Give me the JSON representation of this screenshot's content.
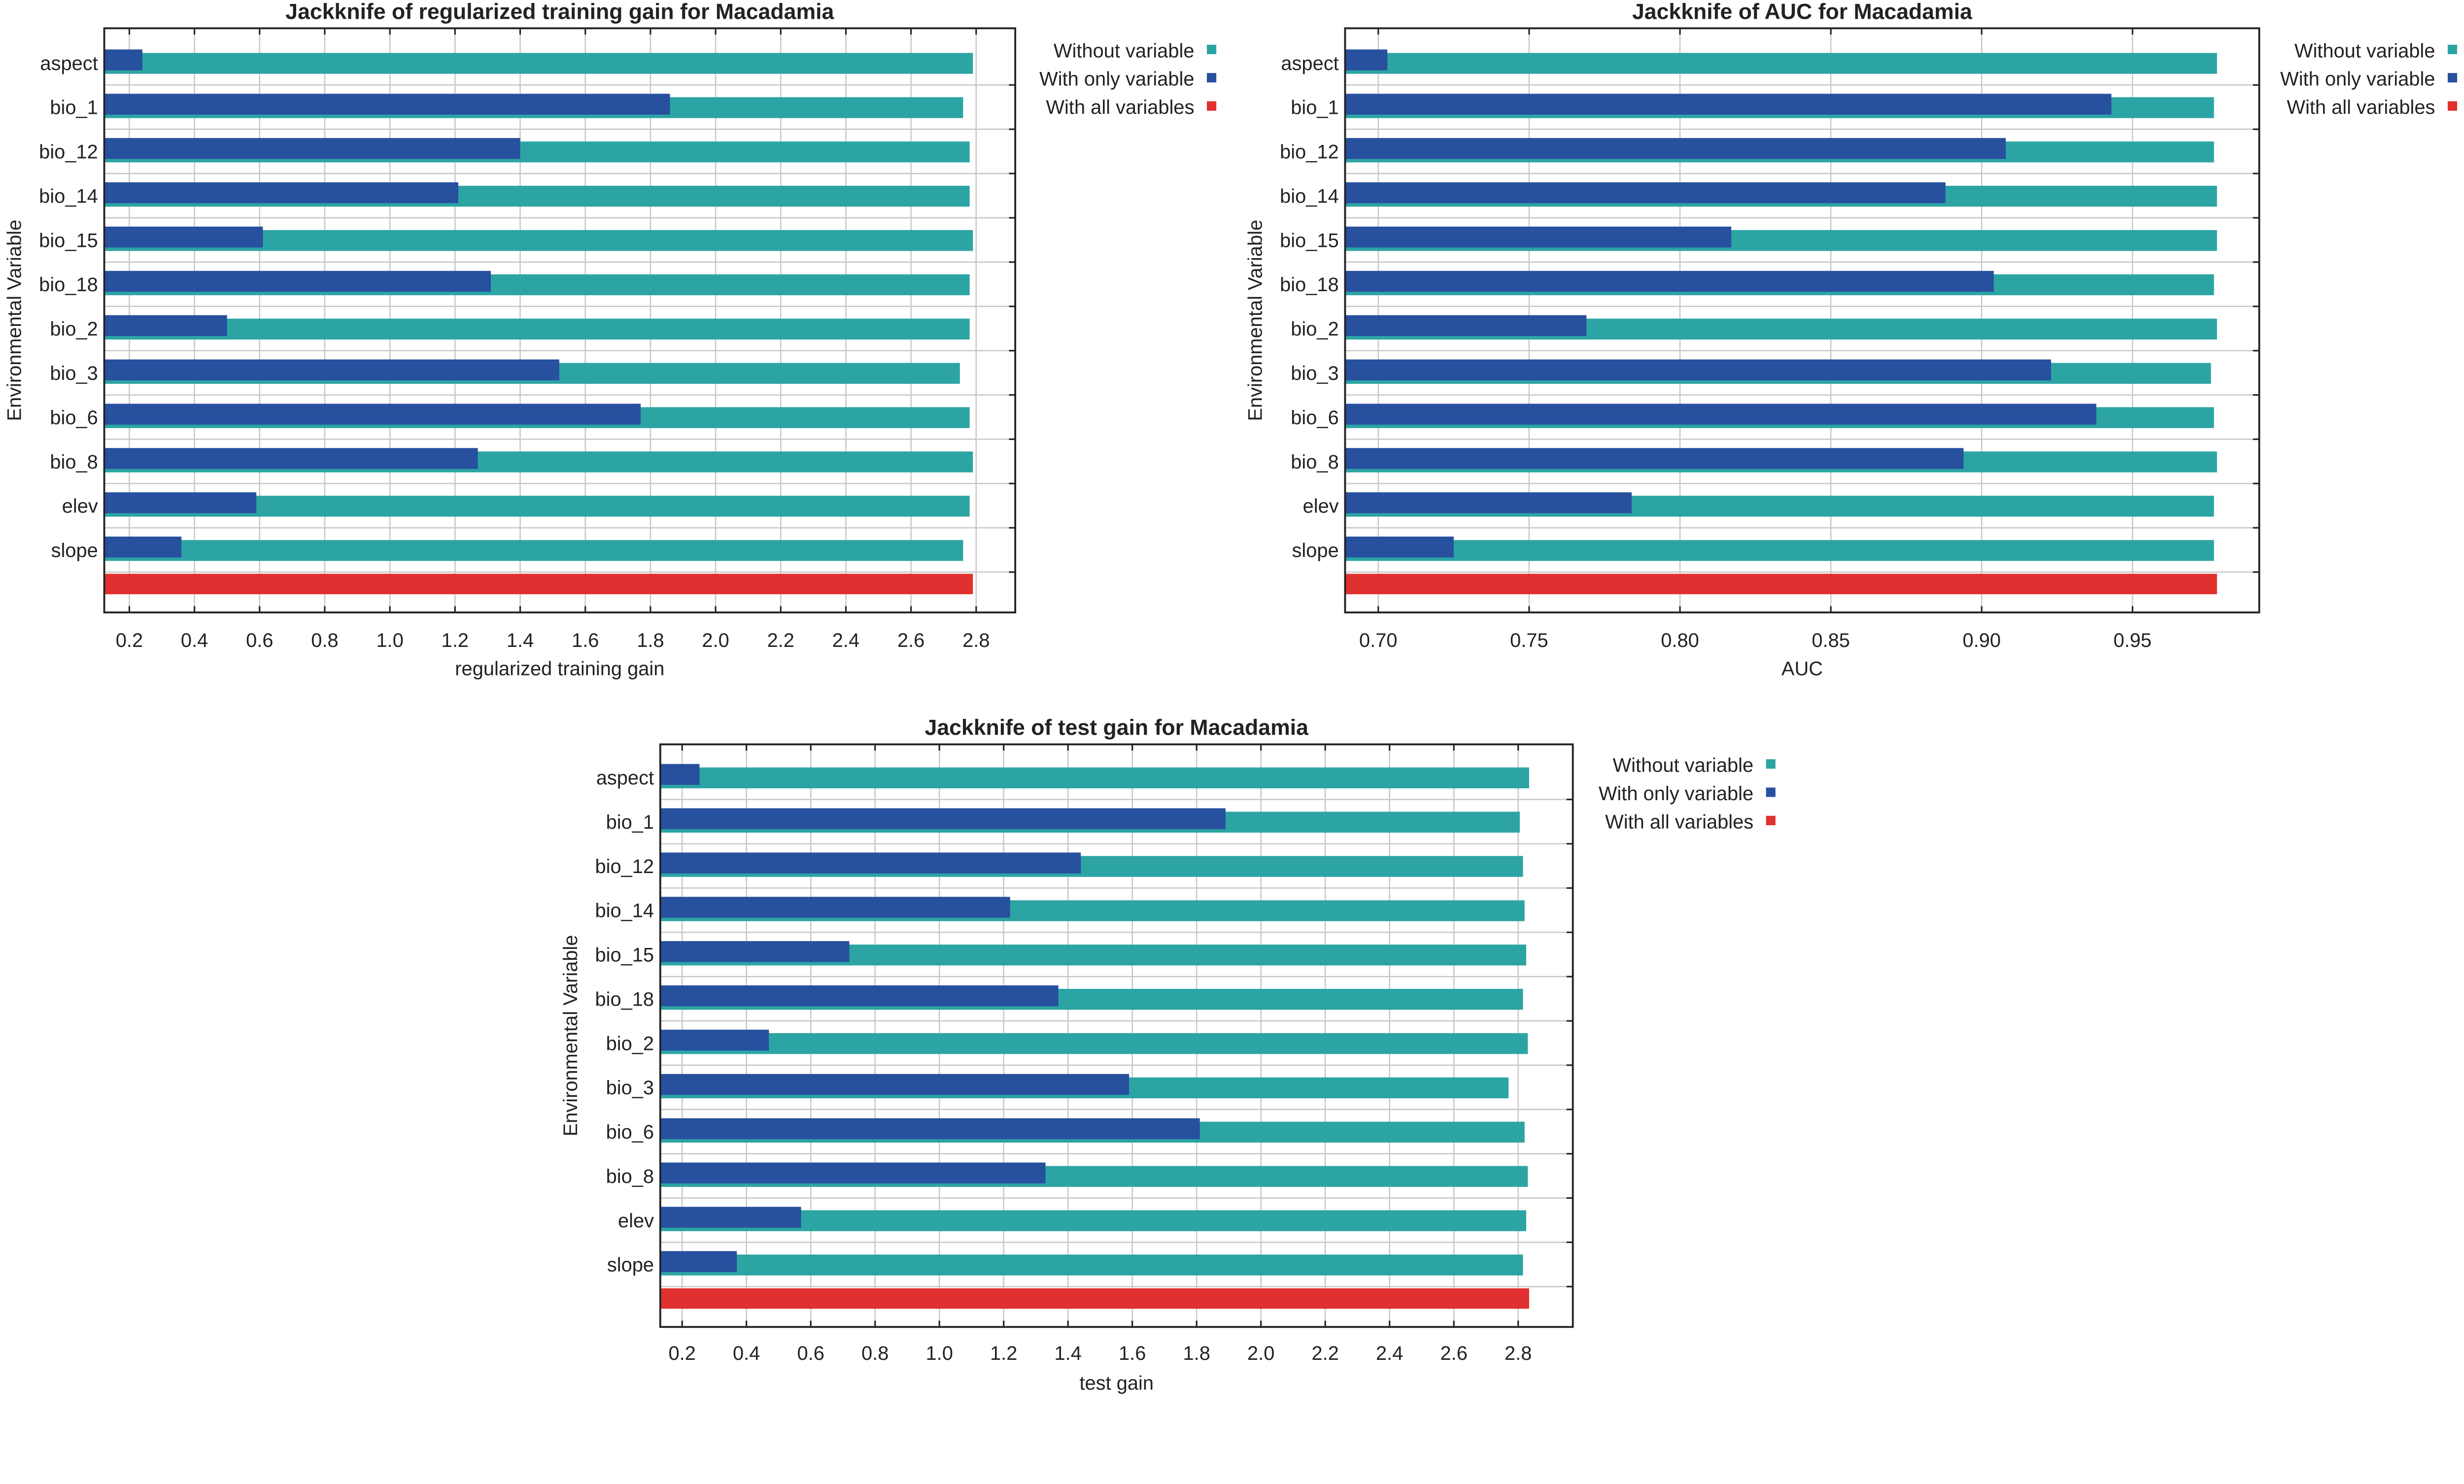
{
  "colors": {
    "without": "#2ca4a4",
    "only": "#27509e",
    "all": "#e0302f",
    "grid": "#c8c8c8",
    "axis": "#222222"
  },
  "legend": [
    "Without variable",
    "With only variable",
    "With all variables"
  ],
  "chart_data": [
    {
      "type": "bar",
      "title": "Jackknife of regularized training gain for Macadamia",
      "xlabel": "regularized training gain",
      "ylabel": "Environmental Variable",
      "xlim": [
        0.123,
        2.92
      ],
      "ticks": [
        0.2,
        0.4,
        0.6,
        0.8,
        1.0,
        1.2,
        1.4,
        1.6,
        1.8,
        2.0,
        2.2,
        2.4,
        2.6,
        2.8
      ],
      "tick_labels": [
        "0.2",
        "0.4",
        "0.6",
        "0.8",
        "1.0",
        "1.2",
        "1.4",
        "1.6",
        "1.8",
        "2.0",
        "2.2",
        "2.4",
        "2.6",
        "2.8"
      ],
      "categories": [
        "aspect",
        "bio_1",
        "bio_12",
        "bio_14",
        "bio_15",
        "bio_18",
        "bio_2",
        "bio_3",
        "bio_6",
        "bio_8",
        "elev",
        "slope"
      ],
      "series": [
        {
          "name": "Without variable",
          "values": [
            2.79,
            2.76,
            2.78,
            2.78,
            2.79,
            2.78,
            2.78,
            2.75,
            2.78,
            2.79,
            2.78,
            2.76
          ]
        },
        {
          "name": "With only variable",
          "values": [
            0.24,
            1.86,
            1.4,
            1.21,
            0.61,
            1.31,
            0.5,
            1.52,
            1.77,
            1.27,
            0.59,
            0.36
          ]
        }
      ],
      "all_variables": 2.79,
      "legend_position": "right"
    },
    {
      "type": "bar",
      "title": "Jackknife of AUC for Macadamia",
      "xlabel": "AUC",
      "ylabel": "Environmental Variable",
      "xlim": [
        0.689,
        0.992
      ],
      "ticks": [
        0.7,
        0.75,
        0.8,
        0.85,
        0.9,
        0.95
      ],
      "tick_labels": [
        "0.70",
        "0.75",
        "0.80",
        "0.85",
        "0.90",
        "0.95"
      ],
      "categories": [
        "aspect",
        "bio_1",
        "bio_12",
        "bio_14",
        "bio_15",
        "bio_18",
        "bio_2",
        "bio_3",
        "bio_6",
        "bio_8",
        "elev",
        "slope"
      ],
      "series": [
        {
          "name": "Without variable",
          "values": [
            0.978,
            0.977,
            0.977,
            0.978,
            0.978,
            0.977,
            0.978,
            0.976,
            0.977,
            0.978,
            0.977,
            0.977
          ]
        },
        {
          "name": "With only variable",
          "values": [
            0.703,
            0.943,
            0.908,
            0.888,
            0.817,
            0.904,
            0.769,
            0.923,
            0.938,
            0.894,
            0.784,
            0.725
          ]
        }
      ],
      "all_variables": 0.978,
      "legend_position": "right"
    },
    {
      "type": "bar",
      "title": "Jackknife of test gain for Macadamia",
      "xlabel": "test gain",
      "ylabel": "Environmental Variable",
      "xlim": [
        0.132,
        2.97
      ],
      "ticks": [
        0.2,
        0.4,
        0.6,
        0.8,
        1.0,
        1.2,
        1.4,
        1.6,
        1.8,
        2.0,
        2.2,
        2.4,
        2.6,
        2.8
      ],
      "tick_labels": [
        "0.2",
        "0.4",
        "0.6",
        "0.8",
        "1.0",
        "1.2",
        "1.4",
        "1.6",
        "1.8",
        "2.0",
        "2.2",
        "2.4",
        "2.6",
        "2.8"
      ],
      "categories": [
        "aspect",
        "bio_1",
        "bio_12",
        "bio_14",
        "bio_15",
        "bio_18",
        "bio_2",
        "bio_3",
        "bio_6",
        "bio_8",
        "elev",
        "slope"
      ],
      "series": [
        {
          "name": "Without variable",
          "values": [
            2.834,
            2.805,
            2.815,
            2.82,
            2.825,
            2.815,
            2.83,
            2.77,
            2.82,
            2.83,
            2.825,
            2.815
          ]
        },
        {
          "name": "With only variable",
          "values": [
            0.254,
            1.89,
            1.44,
            1.22,
            0.72,
            1.37,
            0.47,
            1.59,
            1.81,
            1.33,
            0.57,
            0.37
          ]
        }
      ],
      "all_variables": 2.834,
      "legend_position": "right"
    }
  ]
}
